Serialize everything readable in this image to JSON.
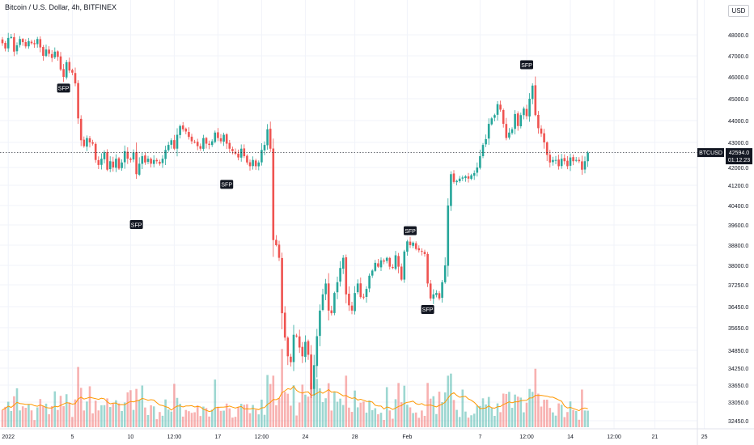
{
  "header": {
    "title": "Bitcoin / U.S. Dollar, 4h, BITFINEX",
    "currency": "USD"
  },
  "price_tag": {
    "symbol": "BTCUSD",
    "price": "42594.0",
    "countdown": "01:12:23"
  },
  "colors": {
    "up": "#26a69a",
    "down": "#ef5350",
    "ma": "#ff9800",
    "grid": "#f0f3fa",
    "axis_text": "#131722",
    "label_bg": "#131722"
  },
  "chart_data": {
    "type": "candlestick",
    "title": "Bitcoin / U.S. Dollar, 4h, BITFINEX",
    "y_ticks": [
      48000,
      47000,
      46000,
      45000,
      44000,
      43000,
      42000,
      41200,
      40400,
      39600,
      38800,
      38000,
      37250,
      36450,
      35650,
      34850,
      34250,
      33650,
      33050,
      32450
    ],
    "y_tick_labels": [
      "48000.0",
      "47000.0",
      "46000.0",
      "45000.0",
      "44000.0",
      "43000.0",
      "42000.0",
      "41200.0",
      "40400.0",
      "39600.0",
      "38800.0",
      "38000.0",
      "37250.0",
      "36450.0",
      "35650.0",
      "34850.0",
      "34250.0",
      "33650.0",
      "33050.0",
      "32450.0"
    ],
    "x_ticks": [
      {
        "label": "2022",
        "bar": 2
      },
      {
        "label": "5",
        "bar": 24
      },
      {
        "label": "10",
        "bar": 44
      },
      {
        "label": "12:00",
        "bar": 59
      },
      {
        "label": "17",
        "bar": 74
      },
      {
        "label": "12:00",
        "bar": 89
      },
      {
        "label": "24",
        "bar": 104
      },
      {
        "label": "28",
        "bar": 121
      },
      {
        "label": "Feb",
        "bar": 139
      },
      {
        "label": "7",
        "bar": 164
      },
      {
        "label": "12:00",
        "bar": 180
      },
      {
        "label": "14",
        "bar": 195
      },
      {
        "label": "12:00",
        "bar": 210
      },
      {
        "label": "21",
        "bar": 224
      },
      {
        "label": "25",
        "bar": 241
      }
    ],
    "last_price": 42594.0,
    "sfp_labels": [
      {
        "label": "SFP",
        "bar": 21,
        "price": 45800,
        "position": "below"
      },
      {
        "label": "SFP",
        "bar": 46,
        "price": 39900,
        "position": "below"
      },
      {
        "label": "SFP",
        "bar": 77,
        "price": 41550,
        "position": "below"
      },
      {
        "label": "SFP",
        "bar": 140,
        "price": 39100,
        "position": "above"
      },
      {
        "label": "SFP",
        "bar": 146,
        "price": 36600,
        "position": "below"
      },
      {
        "label": "SFP",
        "bar": 180,
        "price": 46250,
        "position": "above"
      }
    ],
    "closes": [
      47600,
      47350,
      47850,
      47900,
      47200,
      47500,
      47800,
      47650,
      47450,
      47700,
      47600,
      47550,
      47800,
      47400,
      47000,
      47300,
      47100,
      46900,
      47200,
      46950,
      46350,
      46000,
      46700,
      46300,
      46200,
      45700,
      44100,
      43100,
      42850,
      43200,
      43000,
      42950,
      42300,
      42100,
      42350,
      42600,
      41900,
      42250,
      42000,
      42350,
      41950,
      42200,
      42650,
      42350,
      42300,
      42600,
      41700,
      42150,
      42450,
      42200,
      42350,
      42150,
      42300,
      42250,
      42150,
      42350,
      42700,
      42900,
      43100,
      42750,
      43350,
      43750,
      43600,
      43500,
      43250,
      43050,
      43000,
      42850,
      42750,
      43200,
      42950,
      42900,
      43050,
      43450,
      43200,
      43050,
      43350,
      42950,
      42750,
      42650,
      42550,
      42400,
      42750,
      42450,
      42200,
      42050,
      42300,
      42050,
      42200,
      42700,
      42900,
      43600,
      42750,
      39000,
      38800,
      38300,
      36200,
      35300,
      34650,
      34450,
      35400,
      35350,
      34950,
      34650,
      35150,
      34700,
      33500,
      34350,
      35350,
      36300,
      36900,
      37300,
      36300,
      36200,
      36950,
      37350,
      37900,
      38300,
      36900,
      36500,
      36300,
      36950,
      37300,
      36800,
      36800,
      37100,
      37600,
      37800,
      38100,
      37950,
      38200,
      38150,
      38300,
      37950,
      37900,
      38400,
      37950,
      37450,
      38550,
      38950,
      38800,
      38900,
      38650,
      38600,
      38550,
      38450,
      37300,
      36750,
      36900,
      36950,
      36750,
      37350,
      38000,
      40400,
      41700,
      41350,
      41400,
      41500,
      41550,
      41600,
      41500,
      41650,
      41750,
      42000,
      42450,
      42900,
      43150,
      43850,
      44100,
      44250,
      44750,
      44500,
      43850,
      43200,
      43450,
      43600,
      44300,
      43750,
      44250,
      44550,
      44200,
      45000,
      45600,
      44250,
      43650,
      43400,
      43000,
      42500,
      42200,
      42300,
      42300,
      42050,
      42350,
      42250,
      42050,
      42400,
      42250,
      42300,
      42250,
      41900,
      42250,
      42594
    ],
    "volume_ma_note": "orange line = moving average of volume"
  }
}
